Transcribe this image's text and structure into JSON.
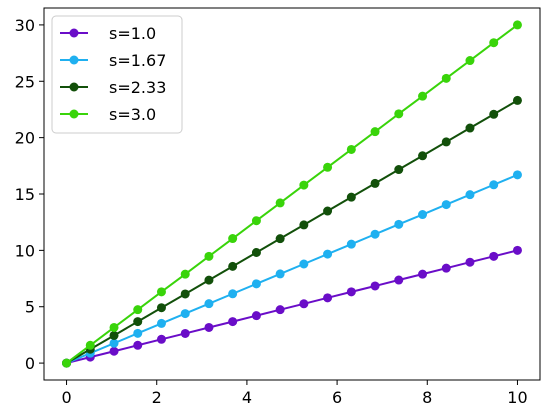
{
  "chart_data": {
    "type": "line",
    "title": "",
    "xlabel": "",
    "ylabel": "",
    "xlim": [
      -0.5,
      10.5
    ],
    "ylim": [
      -1.5,
      31.5
    ],
    "xticks": [
      0,
      2,
      4,
      6,
      8,
      10
    ],
    "yticks": [
      0,
      5,
      10,
      15,
      20,
      25,
      30
    ],
    "grid": false,
    "legend_position": "top-left",
    "x": [
      0,
      0.526,
      1.053,
      1.579,
      2.105,
      2.632,
      3.158,
      3.684,
      4.211,
      4.737,
      5.263,
      5.789,
      6.316,
      6.842,
      7.368,
      7.895,
      8.421,
      8.947,
      9.474,
      10
    ],
    "series": [
      {
        "name": "s=1.0",
        "color": "#6a0dc8",
        "slope": 1.0,
        "values": [
          0,
          0.53,
          1.05,
          1.58,
          2.11,
          2.63,
          3.16,
          3.68,
          4.21,
          4.74,
          5.26,
          5.79,
          6.32,
          6.84,
          7.37,
          7.89,
          8.42,
          8.95,
          9.47,
          10.0
        ]
      },
      {
        "name": "s=1.67",
        "color": "#1fb0f0",
        "slope": 1.67,
        "values": [
          0,
          0.88,
          1.76,
          2.64,
          3.52,
          4.39,
          5.27,
          6.15,
          7.03,
          7.91,
          8.79,
          9.67,
          10.55,
          11.43,
          12.31,
          13.18,
          14.06,
          14.94,
          15.82,
          16.7
        ]
      },
      {
        "name": "s=2.33",
        "color": "#12500a",
        "slope": 2.33,
        "values": [
          0,
          1.23,
          2.45,
          3.68,
          4.91,
          6.13,
          7.36,
          8.58,
          9.81,
          11.04,
          12.26,
          13.49,
          14.72,
          15.94,
          17.17,
          18.39,
          19.62,
          20.85,
          22.07,
          23.3
        ]
      },
      {
        "name": "s=3.0",
        "color": "#39d40a",
        "slope": 3.0,
        "values": [
          0,
          1.58,
          3.16,
          4.74,
          6.32,
          7.89,
          9.47,
          11.05,
          12.63,
          14.21,
          15.79,
          17.37,
          18.95,
          20.53,
          22.11,
          23.68,
          25.26,
          26.84,
          28.42,
          30.0
        ]
      }
    ]
  }
}
